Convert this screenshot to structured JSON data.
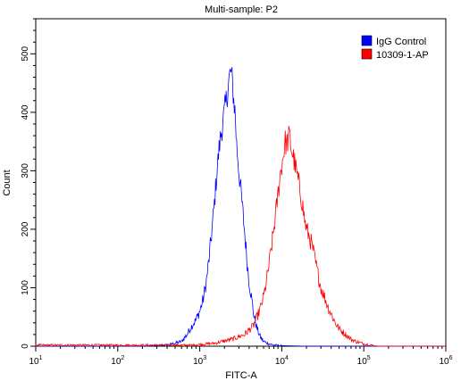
{
  "chart_data": {
    "type": "line",
    "title": "Multi-sample: P2",
    "xlabel": "FITC-A",
    "ylabel": "Count",
    "x_scale": "log",
    "x_range": [
      10,
      1000000
    ],
    "ylim": [
      0,
      560
    ],
    "x_ticks": [
      {
        "value": 10,
        "base": "10",
        "exp": "1"
      },
      {
        "value": 100,
        "base": "10",
        "exp": "2"
      },
      {
        "value": 1000,
        "base": "10",
        "exp": "3"
      },
      {
        "value": 10000,
        "base": "10",
        "exp": "4"
      },
      {
        "value": 100000,
        "base": "10",
        "exp": "5"
      },
      {
        "value": 1000000,
        "base": "10",
        "exp": "6"
      }
    ],
    "y_ticks": [
      0,
      100,
      200,
      300,
      400,
      500
    ],
    "grid": false,
    "legend_position": "top-right",
    "series": [
      {
        "name": "IgG Control",
        "color": "#0000ff",
        "x": [
          200,
          400,
          600,
          700,
          800,
          900,
          1000,
          1100,
          1200,
          1300,
          1400,
          1500,
          1600,
          1700,
          1800,
          1900,
          2000,
          2100,
          2200,
          2300,
          2400,
          2500,
          2600,
          2700,
          2800,
          3000,
          3200,
          3400,
          3600,
          3800,
          4000,
          4300,
          4600,
          5000,
          5500,
          6000,
          7000,
          8000,
          10000,
          20000,
          100000
        ],
        "y": [
          0,
          2,
          8,
          20,
          35,
          45,
          60,
          80,
          110,
          150,
          195,
          240,
          290,
          330,
          360,
          380,
          400,
          420,
          440,
          460,
          470,
          450,
          420,
          400,
          350,
          300,
          260,
          220,
          180,
          140,
          110,
          80,
          50,
          30,
          15,
          8,
          4,
          2,
          1,
          0,
          0
        ]
      },
      {
        "name": "10309-1-AP",
        "color": "#ff0000",
        "x": [
          800,
          1500,
          2500,
          3500,
          4500,
          5000,
          5500,
          6000,
          6500,
          7000,
          7500,
          8000,
          8500,
          9000,
          9500,
          10000,
          10500,
          11000,
          11500,
          12000,
          12500,
          13000,
          13500,
          14000,
          15000,
          16000,
          17000,
          18000,
          19000,
          20000,
          22000,
          24000,
          26000,
          28000,
          30000,
          33000,
          36000,
          40000,
          45000,
          50000,
          60000,
          70000,
          80000,
          100000,
          150000
        ],
        "y": [
          2,
          5,
          12,
          20,
          35,
          50,
          65,
          85,
          110,
          140,
          170,
          200,
          230,
          260,
          290,
          310,
          330,
          350,
          345,
          355,
          360,
          340,
          330,
          320,
          300,
          280,
          260,
          240,
          215,
          200,
          185,
          165,
          140,
          120,
          100,
          85,
          70,
          55,
          40,
          30,
          20,
          12,
          8,
          4,
          0
        ]
      }
    ]
  }
}
